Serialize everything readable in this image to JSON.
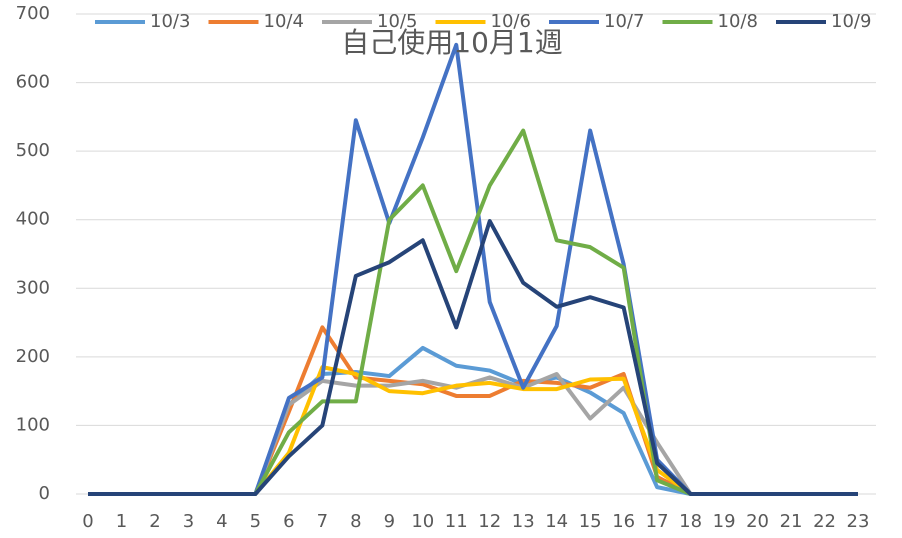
{
  "chart_data": {
    "type": "line",
    "title": "自己使用10月1週",
    "x": [
      0,
      1,
      2,
      3,
      4,
      5,
      6,
      7,
      8,
      9,
      10,
      11,
      12,
      13,
      14,
      15,
      16,
      17,
      18,
      19,
      20,
      21,
      22,
      23
    ],
    "xlim": [
      0,
      23
    ],
    "xticks": [
      0,
      1,
      2,
      3,
      4,
      5,
      6,
      7,
      8,
      9,
      10,
      11,
      12,
      13,
      14,
      15,
      16,
      17,
      18,
      19,
      20,
      21,
      22,
      23
    ],
    "ylim": [
      0,
      700
    ],
    "yticks": [
      0,
      100,
      200,
      300,
      400,
      500,
      600,
      700
    ],
    "grid": true,
    "legend": "top",
    "series": [
      {
        "name": "10/3",
        "color": "#5b9bd5",
        "values": [
          0,
          0,
          0,
          0,
          0,
          0,
          130,
          175,
          178,
          172,
          213,
          187,
          180,
          160,
          170,
          148,
          118,
          10,
          0,
          0,
          0,
          0,
          0,
          0
        ]
      },
      {
        "name": "10/4",
        "color": "#ed7d31",
        "values": [
          0,
          0,
          0,
          0,
          0,
          0,
          120,
          243,
          170,
          165,
          160,
          143,
          143,
          165,
          162,
          155,
          175,
          25,
          0,
          0,
          0,
          0,
          0,
          0
        ]
      },
      {
        "name": "10/5",
        "color": "#a5a5a5",
        "values": [
          0,
          0,
          0,
          0,
          0,
          0,
          130,
          165,
          158,
          158,
          165,
          155,
          170,
          155,
          175,
          110,
          155,
          75,
          0,
          0,
          0,
          0,
          0,
          0
        ]
      },
      {
        "name": "10/6",
        "color": "#ffc000",
        "values": [
          0,
          0,
          0,
          0,
          0,
          0,
          60,
          185,
          175,
          150,
          147,
          158,
          162,
          153,
          153,
          167,
          168,
          35,
          0,
          0,
          0,
          0,
          0,
          0
        ]
      },
      {
        "name": "10/7",
        "color": "#4472c4",
        "values": [
          0,
          0,
          0,
          0,
          0,
          0,
          140,
          170,
          545,
          395,
          520,
          655,
          280,
          155,
          245,
          530,
          335,
          50,
          0,
          0,
          0,
          0,
          0,
          0
        ]
      },
      {
        "name": "10/8",
        "color": "#70ad47",
        "values": [
          0,
          0,
          0,
          0,
          0,
          0,
          90,
          135,
          135,
          400,
          450,
          325,
          450,
          530,
          370,
          360,
          330,
          20,
          0,
          0,
          0,
          0,
          0,
          0
        ]
      },
      {
        "name": "10/9",
        "color": "#264478",
        "values": [
          0,
          0,
          0,
          0,
          0,
          0,
          55,
          100,
          318,
          338,
          370,
          243,
          398,
          308,
          273,
          287,
          272,
          45,
          0,
          0,
          0,
          0,
          0,
          0
        ]
      }
    ]
  }
}
